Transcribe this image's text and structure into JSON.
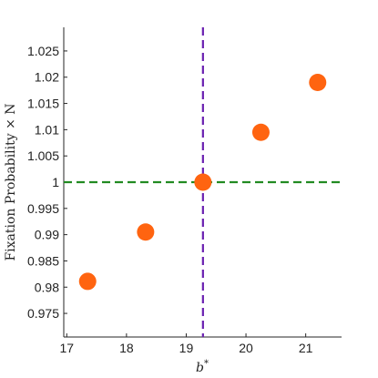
{
  "chart_data": {
    "type": "scatter",
    "title": "",
    "xlabel": "b*",
    "ylabel": "Fixation Probability × N",
    "xlim": [
      16.95,
      21.6
    ],
    "ylim": [
      0.9705,
      1.0295
    ],
    "x_ticks": [
      17,
      18,
      19,
      20,
      21
    ],
    "x_tick_labels": [
      "17",
      "18",
      "19",
      "20",
      "21"
    ],
    "y_ticks": [
      0.975,
      0.98,
      0.985,
      0.99,
      0.995,
      1,
      1.005,
      1.01,
      1.015,
      1.02,
      1.025
    ],
    "y_tick_labels": [
      "0.975",
      "0.98",
      "0.985",
      "0.99",
      "0.995",
      "1",
      "1.005",
      "1.01",
      "1.015",
      "1.02",
      "1.025"
    ],
    "grid": false,
    "series": [
      {
        "x": [
          17.35,
          18.32,
          19.28,
          20.25,
          21.2
        ],
        "y": [
          0.9811,
          0.9905,
          1.0,
          1.0095,
          1.019
        ],
        "color": "#ff6410"
      }
    ],
    "reference_lines": [
      {
        "orientation": "horizontal",
        "value": 1.0,
        "style": "dashed",
        "color": "#228b22"
      },
      {
        "orientation": "vertical",
        "value": 19.28,
        "style": "dashed",
        "color": "#6a1fb0"
      }
    ]
  }
}
